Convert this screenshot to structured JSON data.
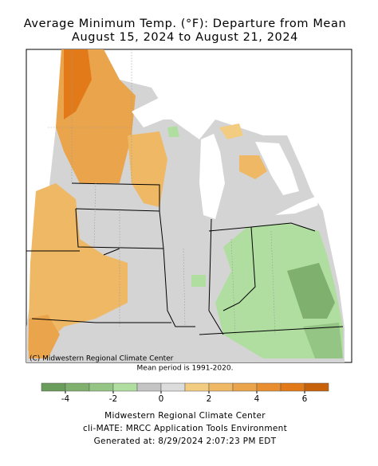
{
  "header": {
    "title": "Average Minimum Temp. (°F): Departure from Mean",
    "subtitle": "August 15, 2024 to August 21, 2024"
  },
  "map": {
    "credit": "(C) Midwestern Regional Climate Center",
    "note": "Mean period is 1991-2020."
  },
  "legend": {
    "bins": [
      -5,
      -4,
      -3,
      -2,
      -1,
      0,
      1,
      2,
      3,
      4,
      5,
      6,
      7
    ],
    "colors": [
      "#6a9c5c",
      "#7fb06e",
      "#95c585",
      "#b0dea0",
      "#c4c4c4",
      "#dcdcdc",
      "#f2cc80",
      "#eeb864",
      "#eaa44c",
      "#e88e30",
      "#e27a1a",
      "#c8620a"
    ],
    "ticks": [
      -4,
      -2,
      0,
      2,
      4,
      6
    ]
  },
  "footer": {
    "line1": "Midwestern Regional Climate Center",
    "line2": "cli-MATE: MRCC Application Tools Environment",
    "line3": "Generated at: 8/29/2024 2:07:23 PM EDT"
  }
}
